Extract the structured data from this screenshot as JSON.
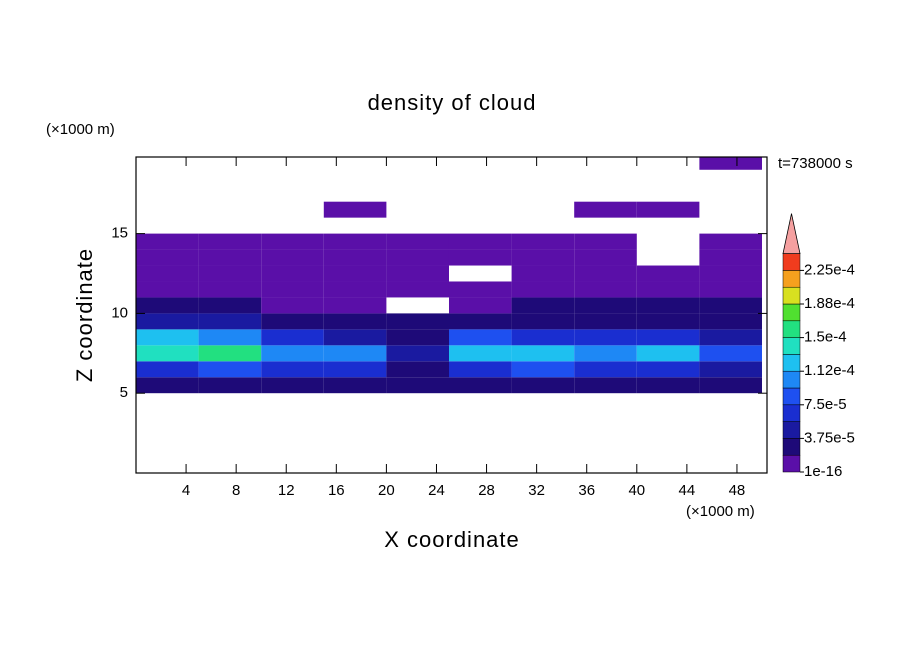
{
  "chart_data": {
    "type": "contour",
    "title": "density of cloud",
    "x_label": "X coordinate",
    "y_label": "Z coordinate",
    "x_unit": "(×1000 m)",
    "y_unit": "(×1000 m)",
    "annotation": "t=738000 s",
    "xlim": [
      0,
      50.4
    ],
    "ylim": [
      0,
      19.8
    ],
    "xticks": [
      4,
      8,
      12,
      16,
      20,
      24,
      28,
      32,
      36,
      40,
      44,
      48
    ],
    "yticks": [
      5,
      10,
      15
    ],
    "x_edges": [
      0,
      5,
      10,
      15,
      20,
      25,
      30,
      35,
      40,
      45,
      50
    ],
    "z_edges": [
      5,
      6,
      7,
      8,
      9,
      10,
      11,
      12,
      13,
      14,
      15,
      16,
      17,
      18,
      19,
      20
    ],
    "values": [
      [
        2e-05,
        2e-05,
        2e-05,
        2e-05,
        2e-05,
        2e-05,
        2e-05,
        2e-05,
        2e-05,
        2e-05
      ],
      [
        7e-05,
        8e-05,
        6e-05,
        6e-05,
        3e-05,
        7e-05,
        8e-05,
        6e-05,
        7e-05,
        5e-05
      ],
      [
        0.00014,
        0.00015,
        0.0001,
        0.0001,
        4e-05,
        0.00012,
        0.00013,
        0.0001,
        0.00012,
        8e-05
      ],
      [
        0.00013,
        0.0001,
        6e-05,
        5e-05,
        3e-05,
        8e-05,
        7e-05,
        6e-05,
        6e-05,
        5e-05
      ],
      [
        4e-05,
        4e-05,
        3.5e-05,
        3e-05,
        2e-05,
        3e-05,
        3e-05,
        3.5e-05,
        3e-05,
        3e-05
      ],
      [
        2e-05,
        2e-05,
        1.5e-05,
        1.5e-05,
        null,
        1.5e-05,
        2e-05,
        2e-05,
        2e-05,
        2e-05
      ],
      [
        1e-05,
        1e-05,
        1e-05,
        1e-05,
        1e-05,
        1e-05,
        1e-05,
        1e-05,
        1e-05,
        1e-05
      ],
      [
        5e-06,
        5e-06,
        5e-06,
        5e-06,
        5e-06,
        null,
        5e-06,
        5e-06,
        5e-06,
        5e-06
      ],
      [
        3e-06,
        3e-06,
        3e-06,
        3e-06,
        3e-06,
        3e-06,
        3e-06,
        3e-06,
        null,
        3e-06
      ],
      [
        1e-06,
        1e-06,
        1e-06,
        1e-06,
        1e-06,
        1e-06,
        1e-06,
        1e-06,
        null,
        1e-06
      ],
      [
        null,
        null,
        null,
        null,
        null,
        null,
        null,
        null,
        null,
        null
      ],
      [
        null,
        null,
        null,
        1e-06,
        null,
        null,
        null,
        1e-06,
        1e-06,
        null
      ],
      [
        null,
        null,
        null,
        null,
        null,
        null,
        null,
        null,
        null,
        null
      ],
      [
        null,
        null,
        null,
        null,
        null,
        null,
        null,
        null,
        null,
        null
      ],
      [
        null,
        null,
        null,
        null,
        null,
        null,
        null,
        null,
        null,
        1e-06
      ]
    ],
    "levels": [
      1e-16,
      1.875e-05,
      3.75e-05,
      5.625e-05,
      7.5e-05,
      9.375e-05,
      0.0001125,
      0.00013125,
      0.00015,
      0.00016875,
      0.0001875,
      0.00020625,
      0.000225
    ],
    "colors": [
      "#5a0fa8",
      "#1e0a78",
      "#1a1aa0",
      "#1a2ed0",
      "#1e50f0",
      "#1e88f5",
      "#1ec0f0",
      "#20e0c0",
      "#22e080",
      "#50e030",
      "#d8e020",
      "#f5a01e",
      "#f03c1e"
    ],
    "extend_color": "#f5a0a0",
    "colorbar_ticks": [
      {
        "value": 1e-16,
        "label": "1e-16"
      },
      {
        "value": 3.75e-05,
        "label": "3.75e-5"
      },
      {
        "value": 7.5e-05,
        "label": "7.5e-5"
      },
      {
        "value": 0.0001125,
        "label": "1.12e-4"
      },
      {
        "value": 0.00015,
        "label": "1.5e-4"
      },
      {
        "value": 0.0001875,
        "label": "1.88e-4"
      },
      {
        "value": 0.000225,
        "label": "2.25e-4"
      }
    ]
  }
}
